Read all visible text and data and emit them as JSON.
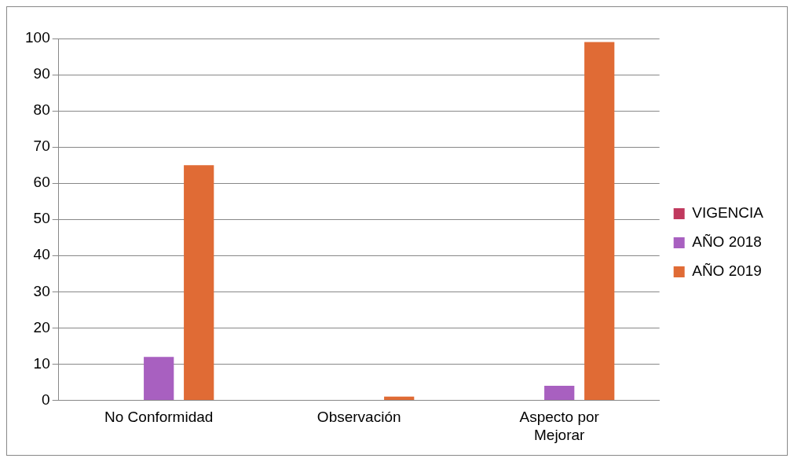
{
  "chart_data": {
    "type": "bar",
    "categories": [
      "No Conformidad",
      "Observación",
      "Aspecto por Mejorar"
    ],
    "series": [
      {
        "name": "VIGENCIA",
        "color": "#c0395e",
        "values": [
          0,
          0,
          0
        ]
      },
      {
        "name": "AÑO 2018",
        "color": "#a860c0",
        "values": [
          12,
          0,
          4
        ]
      },
      {
        "name": "AÑO 2019",
        "color": "#e06b35",
        "values": [
          65,
          1,
          99
        ]
      }
    ],
    "ylim": [
      0,
      100
    ],
    "yticks": [
      0,
      10,
      20,
      30,
      40,
      50,
      60,
      70,
      80,
      90,
      100
    ],
    "grid": "y",
    "legend": "right"
  }
}
